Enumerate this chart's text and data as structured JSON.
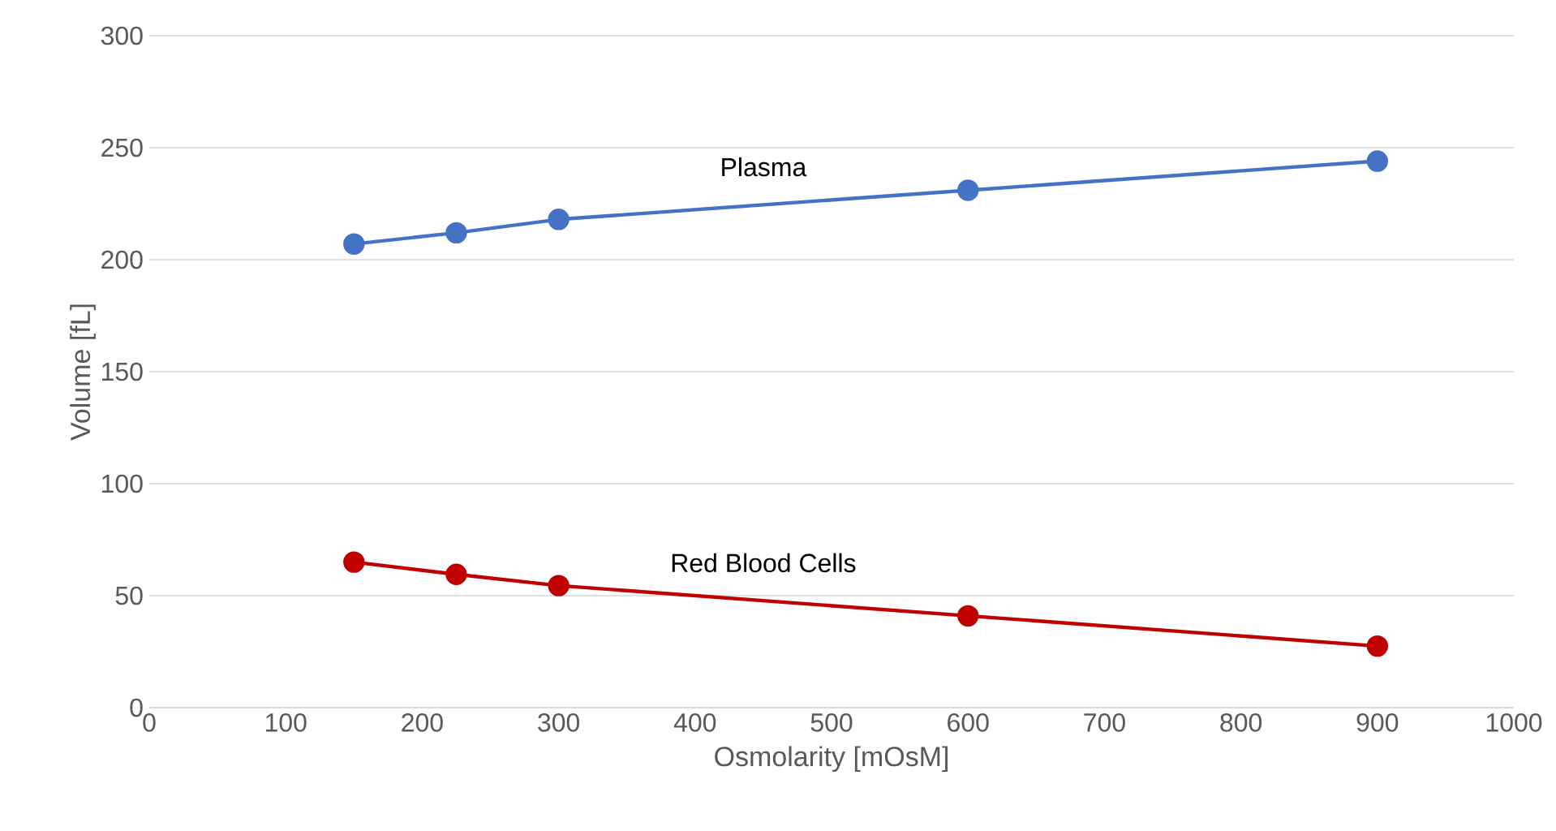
{
  "chart_data": {
    "type": "line",
    "xlabel": "Osmolarity [mOsM]",
    "ylabel": "Volume [fL]",
    "xlim": [
      0,
      1000
    ],
    "xticks": [
      0,
      100,
      200,
      300,
      400,
      500,
      600,
      700,
      800,
      900,
      1000
    ],
    "ylim": [
      0,
      300
    ],
    "yticks": [
      0,
      50,
      100,
      150,
      200,
      250,
      300
    ],
    "grid": "y",
    "marker": "circle",
    "line_style": "solid",
    "series": [
      {
        "name": "Plasma",
        "color": "#4472c4",
        "x": [
          150,
          225,
          300,
          600,
          900
        ],
        "values": [
          207,
          212,
          218,
          231,
          244
        ]
      },
      {
        "name": "Red Blood Cells",
        "color": "#c00000",
        "x": [
          150,
          225,
          300,
          600,
          900
        ],
        "values": [
          65,
          59.5,
          54.5,
          41,
          27.5
        ]
      }
    ]
  }
}
